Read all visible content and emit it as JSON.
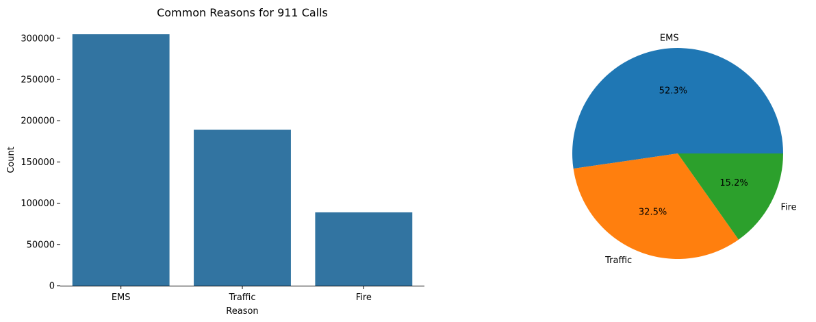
{
  "chart_data": [
    {
      "type": "bar",
      "title": "Common Reasons for 911 Calls",
      "xlabel": "Reason",
      "ylabel": "Count",
      "categories": [
        "EMS",
        "Traffic",
        "Fire"
      ],
      "values": [
        304800,
        189000,
        88900
      ],
      "ylim": [
        0,
        304800
      ],
      "yticks": [
        0,
        50000,
        100000,
        150000,
        200000,
        250000,
        300000
      ],
      "bar_color": "#3274a1",
      "grid": false
    },
    {
      "type": "pie",
      "labels": [
        "EMS",
        "Traffic",
        "Fire"
      ],
      "percent_labels": [
        "52.3%",
        "32.5%",
        "15.2%"
      ],
      "values": [
        52.3,
        32.5,
        15.2
      ],
      "colors": [
        "#1f77b4",
        "#ff7f0e",
        "#2ca02c"
      ]
    }
  ]
}
